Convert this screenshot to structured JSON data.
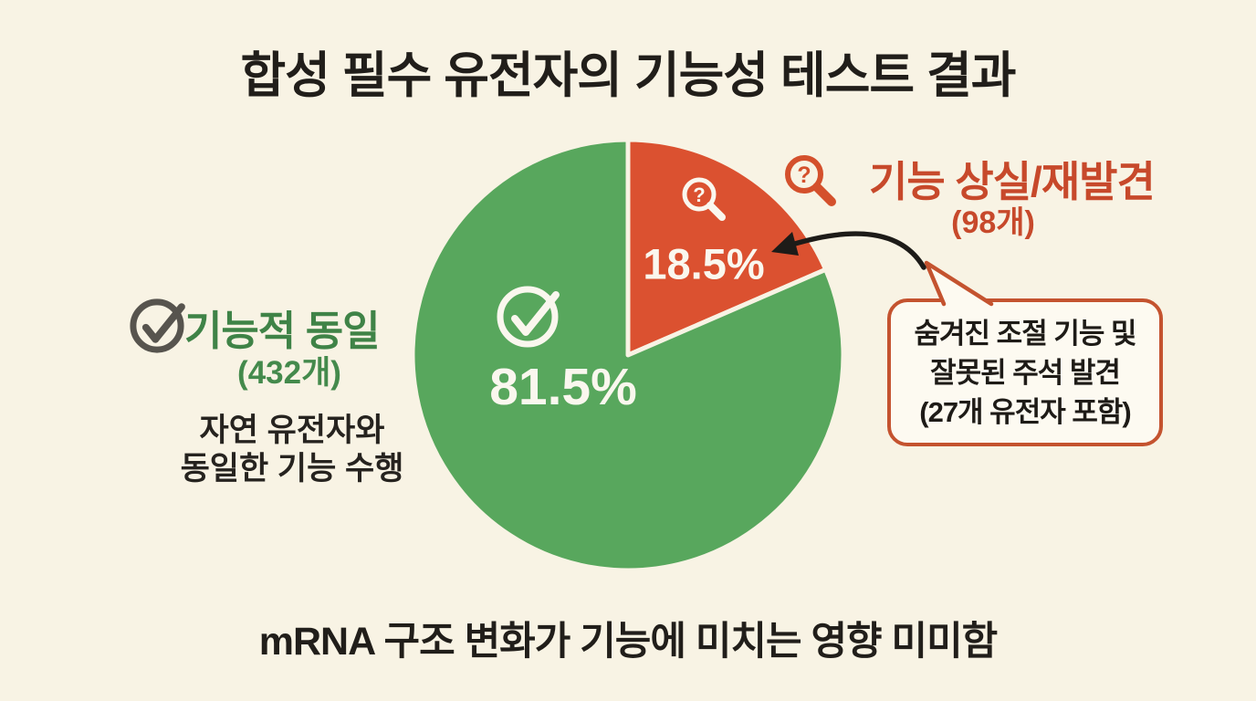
{
  "title": "합성 필수 유전자의 기능성 테스트 결과",
  "footer": "mRNA 구조 변화가 기능에 미치는 영향 미미함",
  "chart_data": {
    "type": "pie",
    "title": "합성 필수 유전자의 기능성 테스트 결과",
    "start_angle_deg": 0,
    "direction": "clockwise",
    "slice_gap_color": "#f8f3e4",
    "slices": [
      {
        "name": "기능 상실/재발견",
        "value": 18.5,
        "percent_label": "18.5%",
        "count_label": "(98개)",
        "color": "#db5130",
        "icon": "magnifier-question-icon"
      },
      {
        "name": "기능적 동일",
        "value": 81.5,
        "percent_label": "81.5%",
        "count_label": "(432개)",
        "color": "#58a75d",
        "icon": "check-circle-icon"
      }
    ]
  },
  "legend_left": {
    "title": "기능적 동일",
    "count": "(432개)",
    "desc_line1": "자연 유전자와",
    "desc_line2": "동일한 기능 수행",
    "icon": "check-circle-icon",
    "text_color": "#3f8347"
  },
  "legend_right": {
    "title": "기능 상실/재발견",
    "count": "(98개)",
    "icon": "magnifier-question-icon",
    "text_color": "#c7492b"
  },
  "callout": {
    "line1": "숨겨진 조절 기능 및",
    "line2": "잘못된 주석 발견",
    "line3": "(27개 유전자 포함)",
    "border_color": "#c4532f"
  },
  "glyphs": {
    "question_mark": "?"
  },
  "colors": {
    "background": "#f8f3e4",
    "pie_green": "#58a75d",
    "pie_orange": "#db5130",
    "text_dark": "#211e1a",
    "percent_text": "#faf7ee",
    "arrow": "#1d1b18",
    "gray_icon": "#57544e"
  }
}
